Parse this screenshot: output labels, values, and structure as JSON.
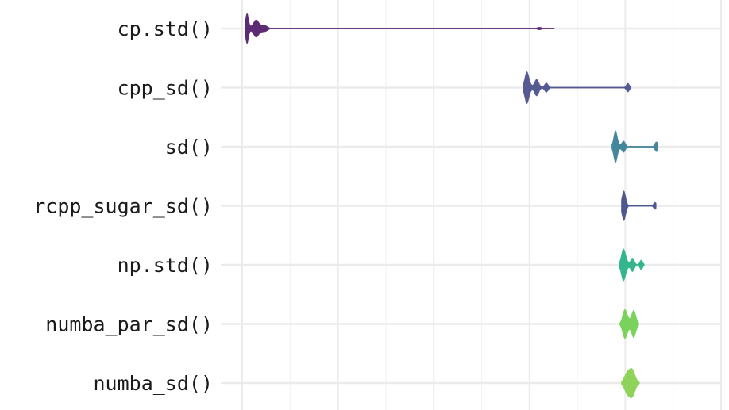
{
  "chart_data": {
    "type": "violin",
    "title": "",
    "xlabel": "",
    "ylabel": "",
    "orientation": "horizontal",
    "grid": true,
    "x_tick_labels_visible": false,
    "xlim": [
      0,
      1
    ],
    "categories": [
      "cp.std()",
      "cpp_sd()",
      "sd()",
      "rcpp_sugar_sd()",
      "np.std()",
      "numba_par_sd()",
      "numba_sd()"
    ],
    "series": [
      {
        "label": "cp.std()",
        "color": "#5d2b74",
        "range": [
          0.01,
          0.65
        ],
        "blobs": [
          [
            0.01,
            0.52,
            2
          ],
          [
            0.028,
            0.32,
            3.5
          ],
          [
            0.045,
            0.14,
            4
          ],
          [
            0.62,
            0.05,
            3
          ]
        ]
      },
      {
        "label": "cpp_sd()",
        "color": "#555a92",
        "range": [
          0.59,
          0.81
        ],
        "blobs": [
          [
            0.595,
            0.55,
            3
          ],
          [
            0.615,
            0.28,
            3
          ],
          [
            0.635,
            0.16,
            2.5
          ],
          [
            0.805,
            0.17,
            2
          ]
        ]
      },
      {
        "label": "sd()",
        "color": "#44869a",
        "range": [
          0.775,
          0.865
        ],
        "blobs": [
          [
            0.78,
            0.55,
            2.5
          ],
          [
            0.796,
            0.2,
            2.5
          ],
          [
            0.865,
            0.17,
            2
          ]
        ]
      },
      {
        "label": "rcpp_sugar_sd()",
        "color": "#4e5890",
        "range": [
          0.795,
          0.862
        ],
        "blobs": [
          [
            0.797,
            0.5,
            2.5
          ],
          [
            0.862,
            0.12,
            2
          ]
        ]
      },
      {
        "label": "np.std()",
        "color": "#35b58e",
        "range": [
          0.79,
          0.838
        ],
        "blobs": [
          [
            0.797,
            0.58,
            3
          ],
          [
            0.815,
            0.23,
            2.5
          ],
          [
            0.833,
            0.17,
            2
          ]
        ]
      },
      {
        "label": "numba_par_sd()",
        "color": "#79d25c",
        "range": [
          0.79,
          0.825
        ],
        "blobs": [
          [
            0.8,
            0.58,
            3
          ],
          [
            0.818,
            0.48,
            3
          ]
        ]
      },
      {
        "label": "numba_sd()",
        "color": "#8fd35a",
        "range": [
          0.795,
          0.828
        ],
        "blobs": [
          [
            0.81,
            0.6,
            5
          ]
        ]
      }
    ]
  }
}
